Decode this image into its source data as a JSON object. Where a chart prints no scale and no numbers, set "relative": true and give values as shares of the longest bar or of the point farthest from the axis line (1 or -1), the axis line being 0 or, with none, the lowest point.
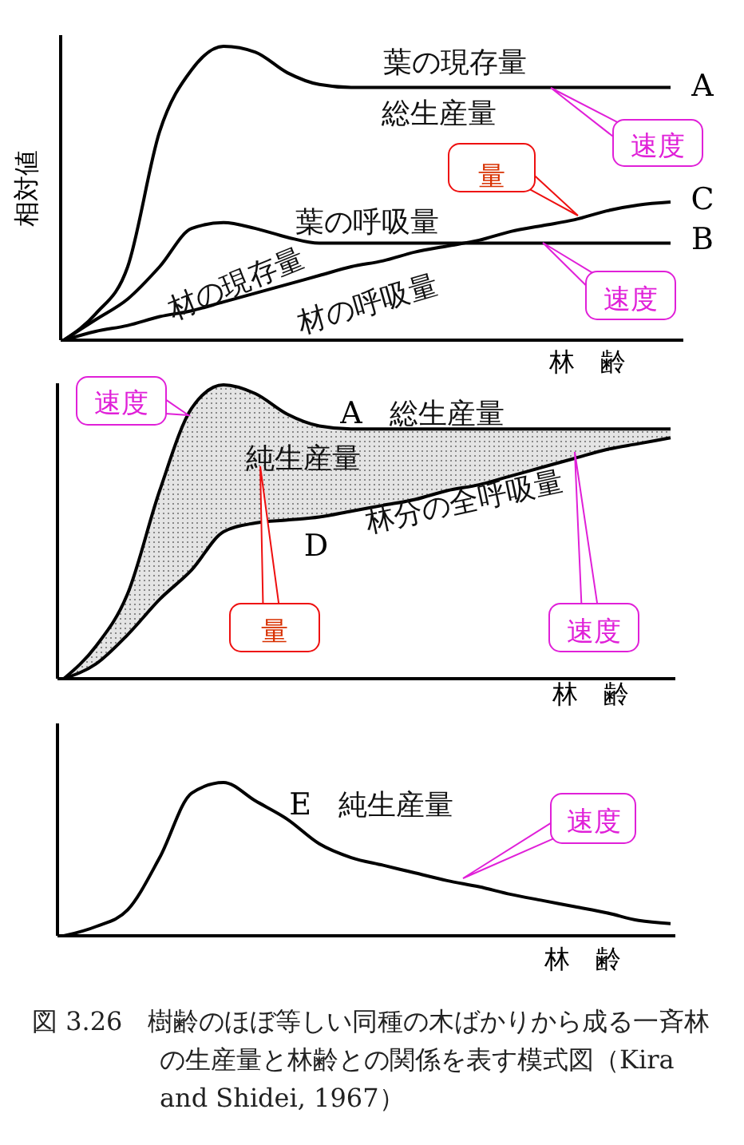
{
  "chart_data": [
    {
      "type": "line",
      "relative": true,
      "ylabel": "相対値",
      "xlabel": "林　齢",
      "categories": [
        null,
        null,
        null,
        null,
        null,
        null,
        null,
        null,
        null,
        null,
        null,
        null,
        null,
        null,
        null,
        null,
        null,
        null,
        null,
        null
      ],
      "series": [
        {
          "name": "A",
          "color": "#000000",
          "values": [
            0,
            0.09,
            0.25,
            0.71,
            0.92,
            1,
            0.98,
            0.91,
            0.87,
            0.86,
            0.86,
            0.86,
            0.86,
            0.86,
            0.86,
            0.86,
            0.86,
            0.86,
            0.86,
            0.86
          ]
        },
        {
          "name": "B",
          "color": "#000000",
          "values": [
            0,
            0.07,
            0.14,
            0.25,
            0.38,
            0.4,
            0.38,
            0.35,
            0.33,
            0.33,
            0.33,
            0.33,
            0.33,
            0.33,
            0.33,
            0.33,
            0.33,
            0.33,
            0.33,
            0.33
          ]
        },
        {
          "name": "C",
          "color": "#000000",
          "values": [
            0,
            0.03,
            0.05,
            0.08,
            0.1,
            0.13,
            0.16,
            0.19,
            0.22,
            0.25,
            0.27,
            0.3,
            0.32,
            0.34,
            0.37,
            0.39,
            0.41,
            0.44,
            0.46,
            0.47
          ]
        }
      ],
      "annotations": [
        "葉の現存量",
        "総生産量",
        "葉の呼吸量",
        "材の現存量",
        "材の呼吸量",
        "速度",
        "量",
        "速度"
      ]
    },
    {
      "type": "line",
      "relative": true,
      "xlabel": "林　齢",
      "categories": [
        null,
        null,
        null,
        null,
        null,
        null,
        null,
        null,
        null,
        null,
        null,
        null,
        null,
        null,
        null,
        null,
        null,
        null,
        null,
        null
      ],
      "series": [
        {
          "name": "A",
          "color": "#000000",
          "values": [
            0,
            0.11,
            0.29,
            0.64,
            0.92,
            1,
            0.97,
            0.9,
            0.86,
            0.85,
            0.85,
            0.85,
            0.85,
            0.85,
            0.85,
            0.85,
            0.85,
            0.85,
            0.85,
            0.85
          ],
          "upper": [
            0,
            0.11,
            0.29,
            0.64,
            0.92,
            1,
            0.97,
            0.9,
            0.86,
            0.85,
            0.85,
            0.85,
            0.85,
            0.85,
            0.85,
            0.85,
            0.85,
            0.85,
            0.85,
            0.85
          ],
          "lower": [
            0,
            0.05,
            0.15,
            0.27,
            0.37,
            0.5,
            0.53,
            0.54,
            0.55,
            0.57,
            0.59,
            0.61,
            0.64,
            0.66,
            0.69,
            0.72,
            0.75,
            0.78,
            0.8,
            0.82
          ]
        },
        {
          "name": "D",
          "color": "#000000",
          "values": [
            0,
            0.05,
            0.15,
            0.27,
            0.37,
            0.5,
            0.53,
            0.54,
            0.55,
            0.57,
            0.59,
            0.61,
            0.64,
            0.66,
            0.69,
            0.72,
            0.75,
            0.78,
            0.8,
            0.82
          ]
        }
      ],
      "annotations": [
        "総生産量",
        "純生産量",
        "林分の全呼吸量",
        "速度",
        "量",
        "速度"
      ]
    },
    {
      "type": "line",
      "relative": true,
      "xlabel": "林　齢",
      "categories": [
        null,
        null,
        null,
        null,
        null,
        null,
        null,
        null,
        null,
        null,
        null,
        null,
        null,
        null,
        null,
        null,
        null,
        null,
        null,
        null
      ],
      "series": [
        {
          "name": "E",
          "color": "#000000",
          "values": [
            0,
            0.06,
            0.17,
            0.51,
            0.93,
            1,
            0.88,
            0.76,
            0.6,
            0.51,
            0.46,
            0.41,
            0.36,
            0.32,
            0.27,
            0.23,
            0.19,
            0.15,
            0.1,
            0.08
          ]
        }
      ],
      "annotations": [
        "純生産量",
        "速度",
        "図 3.26　樹齢のほぼ等しい同種の木ばかりから成る一斉林の生産量と林齢との関係を表す模式図（Kira and Shidei, 1967）"
      ]
    }
  ]
}
